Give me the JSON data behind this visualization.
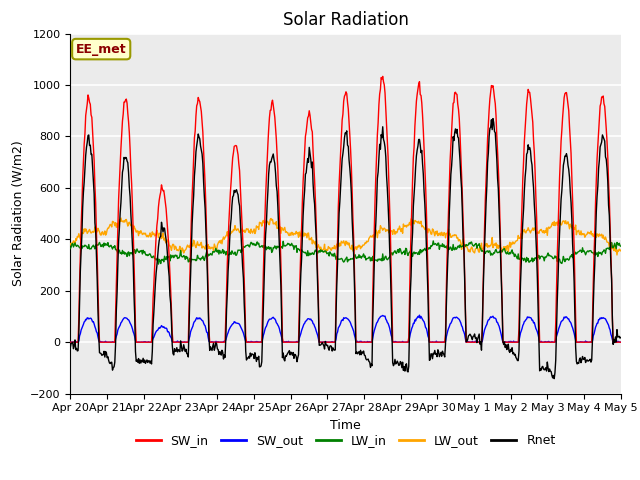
{
  "title": "Solar Radiation",
  "xlabel": "Time",
  "ylabel": "Solar Radiation (W/m2)",
  "ylim": [
    -200,
    1200
  ],
  "yticks": [
    -200,
    0,
    200,
    400,
    600,
    800,
    1000,
    1200
  ],
  "date_labels": [
    "Apr 20",
    "Apr 21",
    "Apr 22",
    "Apr 23",
    "Apr 24",
    "Apr 25",
    "Apr 26",
    "Apr 27",
    "Apr 28",
    "Apr 29",
    "Apr 30",
    "May 1",
    "May 2",
    "May 3",
    "May 4",
    "May 5"
  ],
  "legend_labels": [
    "SW_in",
    "SW_out",
    "LW_in",
    "LW_out",
    "Rnet"
  ],
  "line_colors": [
    "red",
    "blue",
    "green",
    "orange",
    "black"
  ],
  "annotation_text": "EE_met",
  "annotation_box_color": "#FFFFCC",
  "annotation_box_edgecolor": "#999900",
  "plot_bg_color": "#EBEBEB",
  "grid_color": "white",
  "n_days": 15,
  "SW_in_peaks": [
    950,
    940,
    600,
    950,
    770,
    930,
    890,
    970,
    1030,
    1000,
    975,
    1000,
    975,
    970,
    960
  ],
  "SW_out_scale": 0.1,
  "LW_in_base": 350,
  "LW_in_amp": 25,
  "LW_out_base": 410,
  "LW_out_amp": 45,
  "Rnet_night": -70,
  "title_fontsize": 12,
  "label_fontsize": 9,
  "tick_fontsize": 8,
  "legend_fontsize": 9,
  "linewidth": 1.0
}
